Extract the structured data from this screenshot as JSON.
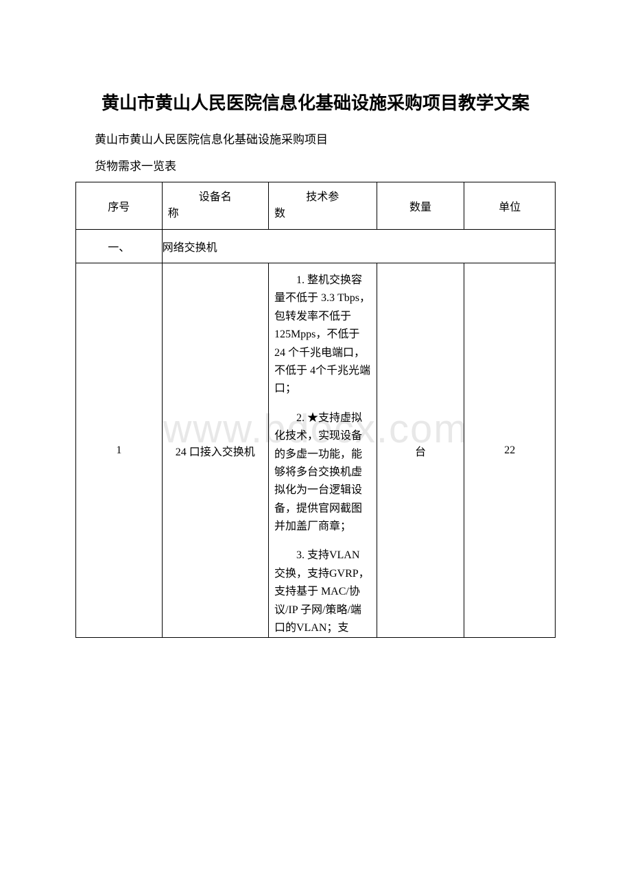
{
  "title": "黄山市黄山人民医院信息化基础设施采购项目教学文案",
  "subtitle": "黄山市黄山人民医院信息化基础设施采购项目",
  "subtitle2": "货物需求一览表",
  "watermark": "www.bdocx.com",
  "table": {
    "headers": {
      "seq": "序号",
      "name_line1": "设备名",
      "name_line2": "称",
      "spec_line1": "技术参",
      "spec_line2": "数",
      "qty": "数量",
      "unit": "单位"
    },
    "section": {
      "seq": "一、",
      "label": "网络交换机"
    },
    "row1": {
      "seq": "1",
      "name": "24 口接入交换机",
      "spec1": "1. 整机交换容量不低于 3.3 Tbps，包转发率不低于125Mpps，不低于 24 个千兆电端口，不低于 4个千兆光端口；",
      "spec2": "2. ★支持虚拟化技术，实现设备的多虚一功能，能够将多台交换机虚拟化为一台逻辑设备，提供官网截图并加盖厂商章；",
      "spec3": "3. 支持VLAN 交换，支持GVRP，支持基于 MAC/协议/IP 子网/策略/端口的VLAN；支",
      "qty": "台",
      "unit": "22"
    }
  },
  "colors": {
    "background": "#ffffff",
    "text": "#000000",
    "border": "#000000",
    "watermark": "#e8e8e8"
  }
}
